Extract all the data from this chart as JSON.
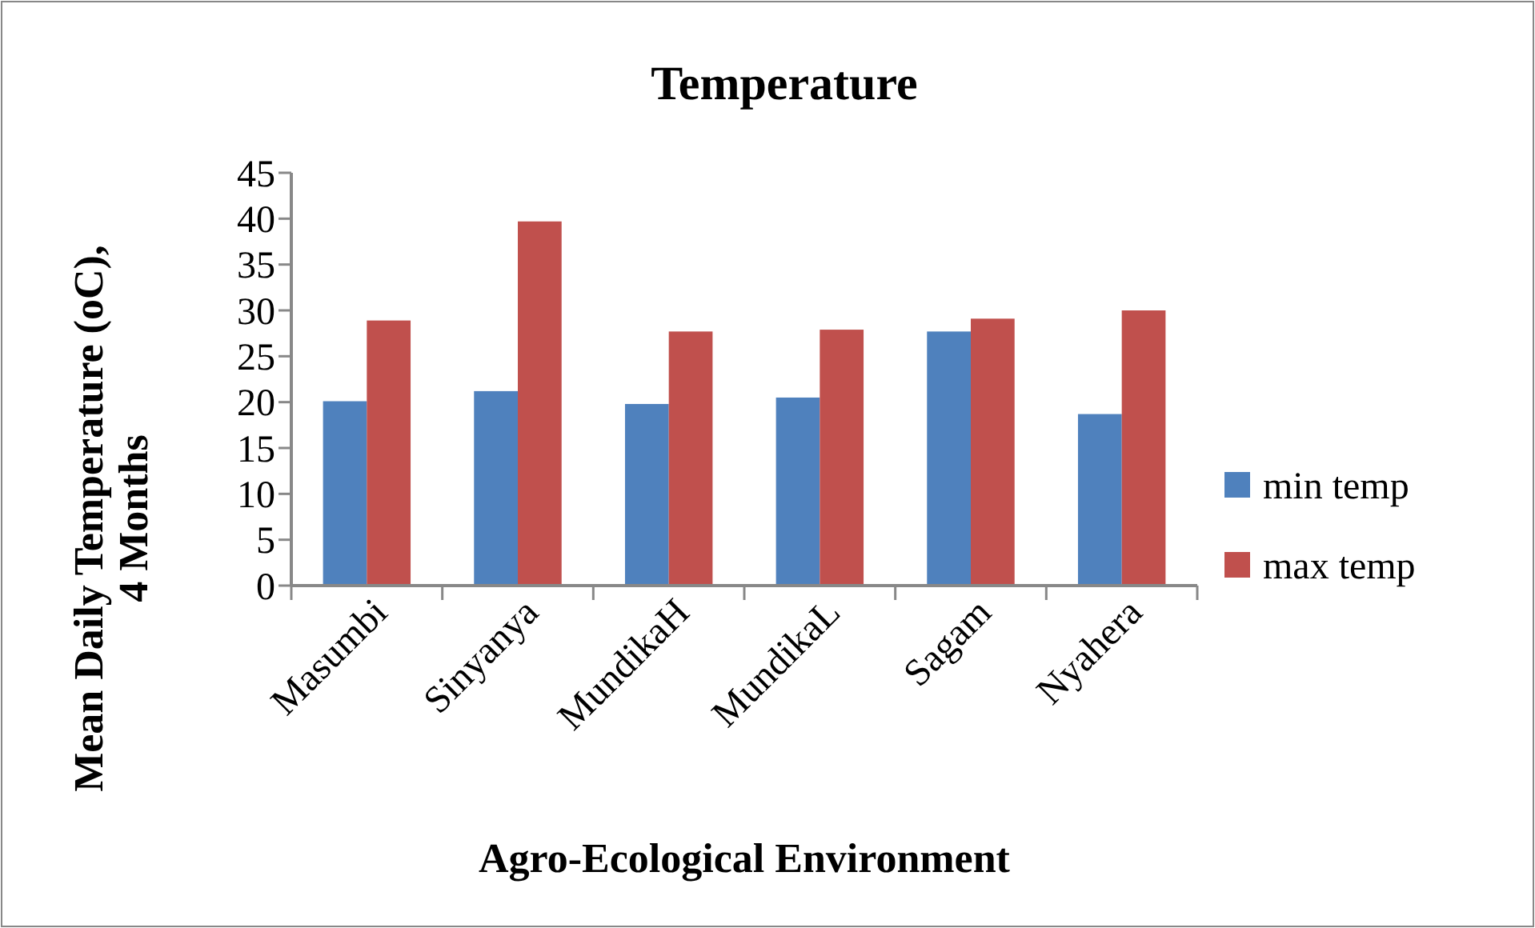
{
  "chart_data": {
    "type": "bar",
    "title": "Temperature",
    "xlabel": "Agro-Ecological Environment",
    "ylabel": "Mean Daily Temperature (oC), 4 Months",
    "categories": [
      "Masumbi",
      "Sinyanya",
      "MundikaH",
      "MundikaL",
      "Sagam",
      "Nyahera"
    ],
    "series": [
      {
        "name": "min temp",
        "color": "#4f81bd",
        "values": [
          20.1,
          21.2,
          19.8,
          20.5,
          27.7,
          18.7
        ]
      },
      {
        "name": "max temp",
        "color": "#c0504d",
        "values": [
          28.9,
          39.7,
          27.7,
          27.9,
          29.1,
          30.0
        ]
      }
    ],
    "ylim": [
      0,
      45
    ],
    "yticks": [
      0,
      5,
      10,
      15,
      20,
      25,
      30,
      35,
      40,
      45
    ],
    "grid": false,
    "legend": "right"
  }
}
